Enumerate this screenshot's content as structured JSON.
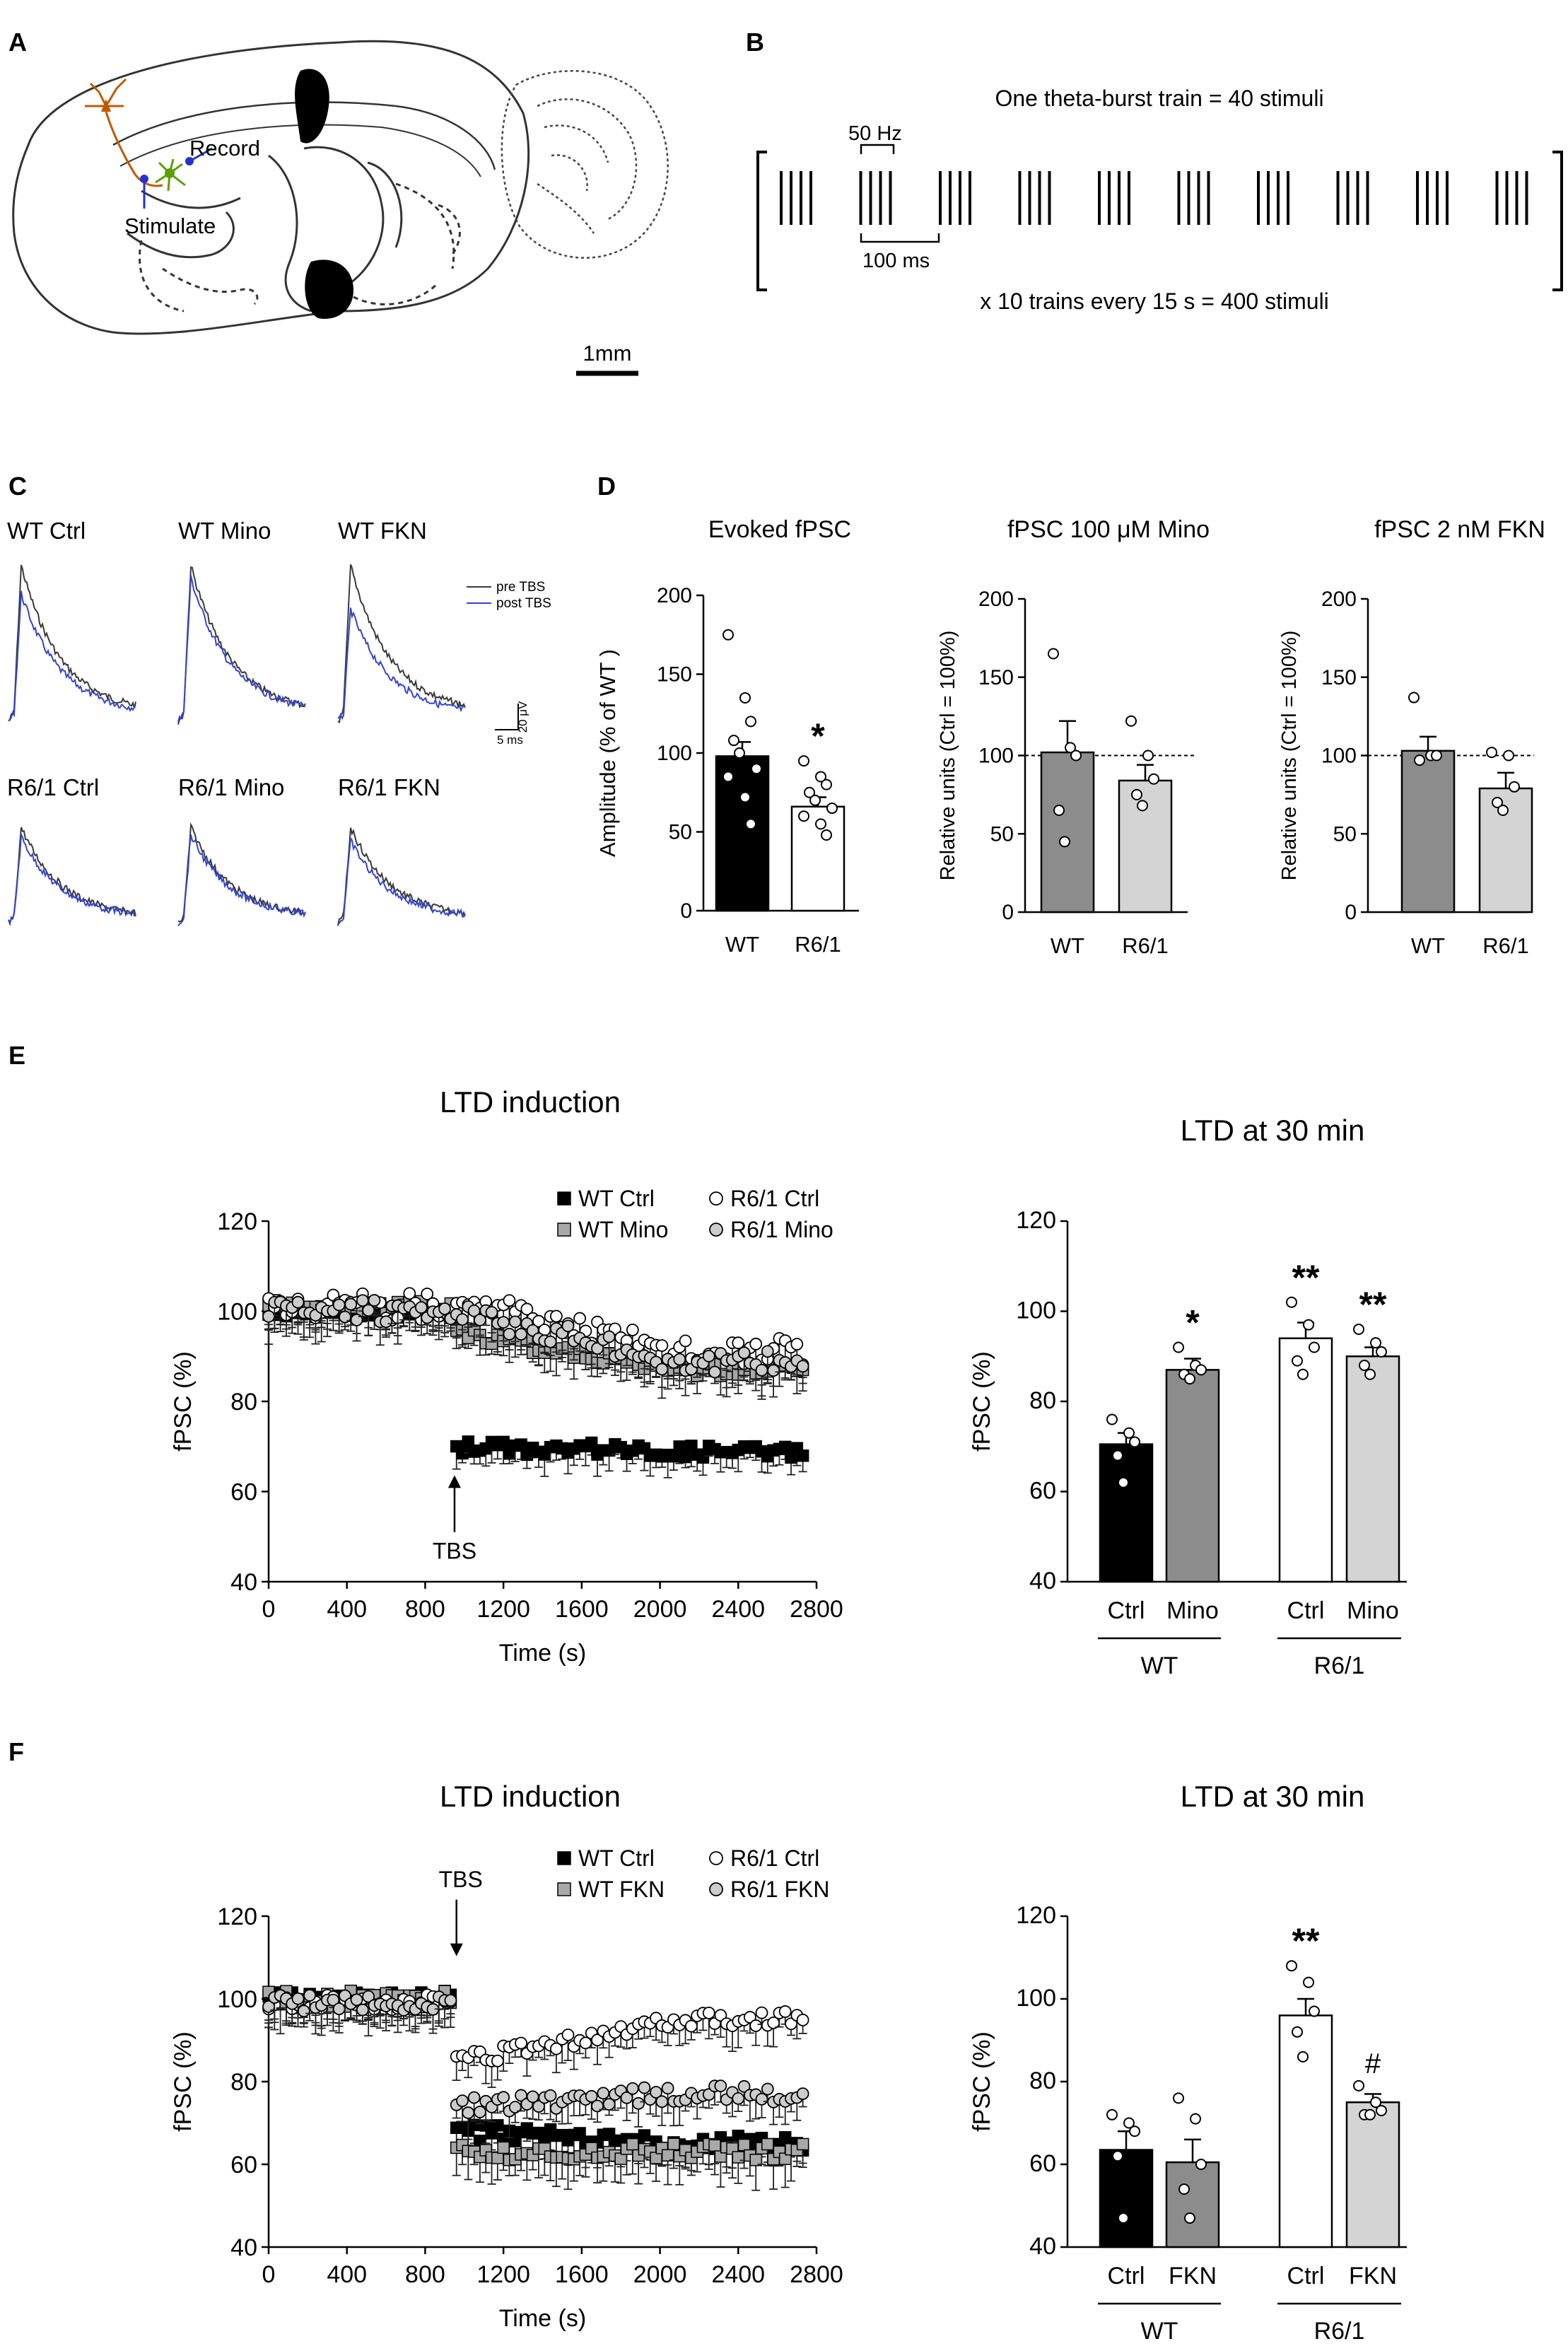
{
  "panels": {
    "A": {
      "letter": "A",
      "record_label": "Record",
      "stimulate_label": "Stimulate",
      "scale_bar_label": "1mm"
    },
    "B": {
      "letter": "B",
      "title": "One theta-burst train = 40 stimuli",
      "freq_label": "50 Hz",
      "interval_label": "100 ms",
      "footer": "x 10 trains every 15 s = 400 stimuli",
      "bursts_per_train": 10,
      "pulses_per_burst": 4
    },
    "C": {
      "letter": "C",
      "trace_titles": [
        "WT Ctrl",
        "WT Mino",
        "WT FKN",
        "R6/1 Ctrl",
        "R6/1 Mino",
        "R6/1 FKN"
      ],
      "legend": [
        "pre TBS",
        "post TBS"
      ],
      "scale_y_label": "20 μV",
      "scale_x_label": "5 ms",
      "colors": {
        "pre": "#3a3a3a",
        "post": "#3344cc"
      }
    },
    "D": {
      "letter": "D"
    },
    "E": {
      "letter": "E"
    },
    "F": {
      "letter": "F"
    }
  },
  "chart_data": [
    {
      "id": "D1",
      "type": "bar",
      "title": "Evoked fPSC",
      "ylabel": "Amplitude  (% of WT )",
      "ylim": [
        0,
        200
      ],
      "yticks": [
        0,
        50,
        100,
        150,
        200
      ],
      "categories": [
        "WT",
        "R6/1"
      ],
      "values": [
        98,
        66
      ],
      "sem": [
        9,
        6
      ],
      "fills": [
        "#000000",
        "#ffffff"
      ],
      "points": [
        [
          175,
          135,
          120,
          108,
          100,
          90,
          85,
          72,
          55
        ],
        [
          95,
          85,
          80,
          75,
          70,
          65,
          60,
          55,
          48
        ]
      ],
      "annotations": [
        {
          "index": 1,
          "text": "*"
        }
      ],
      "dashed_line": null
    },
    {
      "id": "D2",
      "type": "bar",
      "title": "fPSC 100 μM Mino",
      "ylabel": "Relative units (Ctrl = 100%)",
      "ylim": [
        0,
        200
      ],
      "yticks": [
        0,
        50,
        100,
        150,
        200
      ],
      "categories": [
        "WT",
        "R6/1"
      ],
      "values": [
        102,
        84
      ],
      "sem": [
        20,
        10
      ],
      "fills": [
        "#8c8c8c",
        "#d4d4d4"
      ],
      "points": [
        [
          165,
          105,
          100,
          65,
          45
        ],
        [
          122,
          100,
          85,
          75,
          68
        ]
      ],
      "annotations": [],
      "dashed_line": 100
    },
    {
      "id": "D3",
      "type": "bar",
      "title": "fPSC 2 nM FKN",
      "ylabel": "Relative units (Ctrl = 100%)",
      "ylim": [
        0,
        200
      ],
      "yticks": [
        0,
        50,
        100,
        150,
        200
      ],
      "categories": [
        "WT",
        "R6/1"
      ],
      "values": [
        103,
        79
      ],
      "sem": [
        9,
        10
      ],
      "fills": [
        "#8c8c8c",
        "#d4d4d4"
      ],
      "points": [
        [
          137,
          100,
          100,
          97
        ],
        [
          102,
          100,
          80,
          70,
          65
        ]
      ],
      "annotations": [],
      "dashed_line": 100
    },
    {
      "id": "E1",
      "type": "scatter",
      "title": "LTD induction",
      "xlabel": "Time (s)",
      "ylabel": "fPSC (%)",
      "xlim": [
        0,
        2800
      ],
      "ylim": [
        40,
        120
      ],
      "xticks": [
        0,
        400,
        800,
        1200,
        1600,
        2000,
        2400,
        2800
      ],
      "yticks": [
        40,
        60,
        80,
        100,
        120
      ],
      "tbs_label": "TBS",
      "tbs_time": 950,
      "tbs_arrow": "up",
      "series": [
        {
          "name": "WT Ctrl",
          "marker": "square",
          "fill": "#000000",
          "pre": 100,
          "post_start": 70,
          "post_end": 69,
          "err": 4,
          "noise": 1.5
        },
        {
          "name": "WT Mino",
          "marker": "square",
          "fill": "#a8a8a8",
          "pre": 101,
          "post_start": 95,
          "post_end": 87,
          "err": 4,
          "noise": 1.5
        },
        {
          "name": "R6/1 Ctrl",
          "marker": "circle",
          "fill": "#ffffff",
          "pre": 101,
          "post_start": 104,
          "post_end": 91,
          "err": 5,
          "noise": 3
        },
        {
          "name": "R6/1 Mino",
          "marker": "circle",
          "fill": "#cccccc",
          "pre": 100,
          "post_start": 100,
          "post_end": 89,
          "err": 5,
          "noise": 2.5
        }
      ]
    },
    {
      "id": "E2",
      "type": "bar",
      "title": "LTD at 30 min",
      "ylabel": "fPSC (%)",
      "ylim": [
        40,
        120
      ],
      "yticks": [
        40,
        60,
        80,
        100,
        120
      ],
      "categories": [
        "Ctrl",
        "Mino",
        "Ctrl",
        "Mino"
      ],
      "groups": [
        "WT",
        "R6/1"
      ],
      "values": [
        70.5,
        87,
        94,
        90
      ],
      "sem": [
        2.5,
        2.5,
        3.5,
        2
      ],
      "fills": [
        "#000000",
        "#8c8c8c",
        "#ffffff",
        "#d4d4d4"
      ],
      "points": [
        [
          76,
          73,
          71,
          68,
          62
        ],
        [
          92,
          88,
          87,
          86,
          85
        ],
        [
          102,
          97,
          92,
          89,
          86
        ],
        [
          96,
          93,
          91,
          88,
          86
        ]
      ],
      "annotations": [
        {
          "index": 1,
          "text": "*"
        },
        {
          "index": 2,
          "text": "**"
        },
        {
          "index": 3,
          "text": "**"
        }
      ]
    },
    {
      "id": "F1",
      "type": "scatter",
      "title": "LTD induction",
      "xlabel": "Time (s)",
      "ylabel": "fPSC (%)",
      "xlim": [
        0,
        2800
      ],
      "ylim": [
        40,
        120
      ],
      "xticks": [
        0,
        400,
        800,
        1200,
        1600,
        2000,
        2400,
        2800
      ],
      "yticks": [
        40,
        60,
        80,
        100,
        120
      ],
      "tbs_label": "TBS",
      "tbs_time": 960,
      "tbs_arrow": "down",
      "series": [
        {
          "name": "WT Ctrl",
          "marker": "square",
          "fill": "#000000",
          "pre": 100,
          "post_start": 68,
          "post_end": 65,
          "err": 5,
          "noise": 2
        },
        {
          "name": "WT FKN",
          "marker": "square",
          "fill": "#a8a8a8",
          "pre": 100,
          "post_start": 63,
          "post_end": 63,
          "err": 6,
          "noise": 2
        },
        {
          "name": "R6/1 Ctrl",
          "marker": "circle",
          "fill": "#ffffff",
          "pre": 99,
          "post_start": 85,
          "post_end": 95,
          "err": 5,
          "noise": 2
        },
        {
          "name": "R6/1 FKN",
          "marker": "circle",
          "fill": "#cccccc",
          "pre": 99,
          "post_start": 74,
          "post_end": 77,
          "err": 5,
          "noise": 2
        }
      ]
    },
    {
      "id": "F2",
      "type": "bar",
      "title": "LTD at 30 min",
      "ylabel": "fPSC (%)",
      "ylim": [
        40,
        120
      ],
      "yticks": [
        40,
        60,
        80,
        100,
        120
      ],
      "categories": [
        "Ctrl",
        "FKN",
        "Ctrl",
        "FKN"
      ],
      "groups": [
        "WT",
        "R6/1"
      ],
      "values": [
        63.5,
        60.5,
        96,
        75
      ],
      "sem": [
        4.5,
        5.5,
        4,
        2
      ],
      "fills": [
        "#000000",
        "#8c8c8c",
        "#ffffff",
        "#d4d4d4"
      ],
      "points": [
        [
          72,
          70,
          68,
          62,
          47
        ],
        [
          76,
          71,
          60,
          54,
          47
        ],
        [
          108,
          104,
          97,
          92,
          86
        ],
        [
          79,
          75,
          73,
          72,
          72
        ]
      ],
      "annotations": [
        {
          "index": 2,
          "text": "**"
        },
        {
          "index": 3,
          "text": "#"
        }
      ]
    }
  ]
}
